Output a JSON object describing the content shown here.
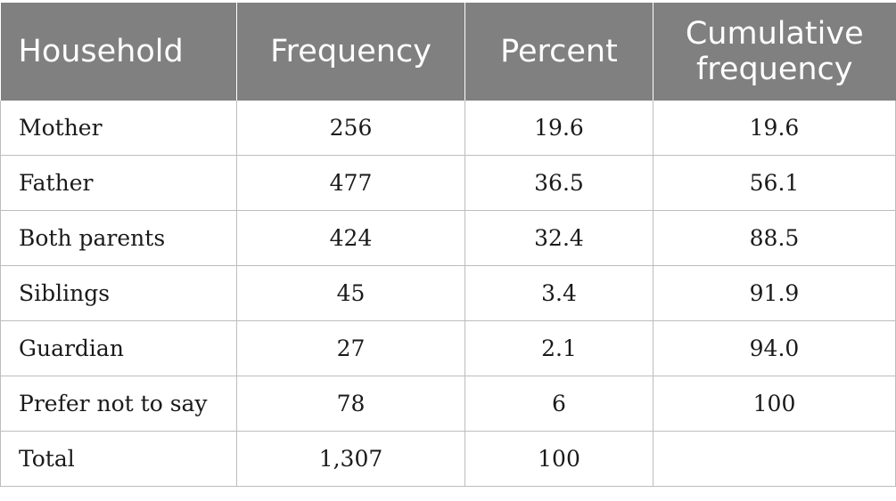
{
  "table": {
    "headers": [
      "Household",
      "Frequency",
      "Percent",
      "Cumulative frequency"
    ],
    "header_lines": {
      "cumulative_line1": "Cumulative",
      "cumulative_line2": "frequency"
    },
    "rows": [
      [
        "Mother",
        "256",
        "19.6",
        "19.6"
      ],
      [
        "Father",
        "477",
        "36.5",
        "56.1"
      ],
      [
        "Both parents",
        "424",
        "32.4",
        "88.5"
      ],
      [
        "Siblings",
        "45",
        "3.4",
        "91.9"
      ],
      [
        "Guardian",
        "27",
        "2.1",
        "94.0"
      ],
      [
        "Prefer not to say",
        "78",
        "6",
        "100"
      ],
      [
        "Total",
        "1,307",
        "100",
        ""
      ]
    ]
  },
  "colors": {
    "header_background": "#808080",
    "header_text": "#ffffff",
    "grid_lines": "#bdbdbd",
    "body_text": "#1a1a1a"
  }
}
